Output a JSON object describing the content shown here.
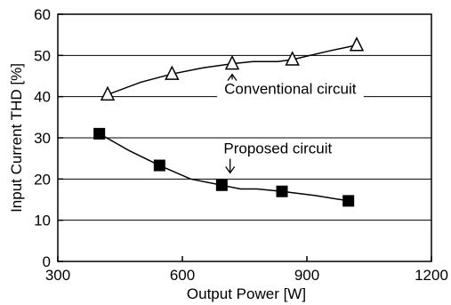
{
  "chart_data": {
    "type": "line",
    "xlabel": "Output Power [W]",
    "ylabel": "Input Current THD [%]",
    "xlim": [
      300,
      1200
    ],
    "ylim": [
      0,
      60
    ],
    "xticks": [
      "300",
      "600",
      "900",
      "1200"
    ],
    "yticks": [
      "0",
      "10",
      "20",
      "30",
      "40",
      "50",
      "60"
    ],
    "grid": "horizontal",
    "series": [
      {
        "name": "Conventional circuit",
        "marker": "open-triangle",
        "color": "#000000",
        "points": [
          [
            420,
            40.5
          ],
          [
            575,
            45.5
          ],
          [
            720,
            48.0
          ],
          [
            865,
            49.0
          ],
          [
            1020,
            52.5
          ]
        ],
        "curve": [
          [
            420,
            40.5
          ],
          [
            500,
            43.5
          ],
          [
            575,
            45.5
          ],
          [
            650,
            47.0
          ],
          [
            720,
            48.0
          ],
          [
            770,
            48.5
          ],
          [
            830,
            48.5
          ],
          [
            865,
            49.0
          ],
          [
            950,
            51.0
          ],
          [
            1020,
            52.5
          ]
        ]
      },
      {
        "name": "Proposed circuit",
        "marker": "filled-square",
        "color": "#000000",
        "points": [
          [
            400,
            31.0
          ],
          [
            545,
            23.3
          ],
          [
            695,
            18.5
          ],
          [
            840,
            17.0
          ],
          [
            1000,
            14.7
          ]
        ],
        "curve": [
          [
            400,
            31.0
          ],
          [
            470,
            27.0
          ],
          [
            545,
            23.3
          ],
          [
            620,
            20.0
          ],
          [
            695,
            18.5
          ],
          [
            740,
            17.6
          ],
          [
            780,
            17.6
          ],
          [
            840,
            17.0
          ],
          [
            920,
            16.0
          ],
          [
            1000,
            14.7
          ]
        ]
      }
    ],
    "annotations": [
      {
        "text": "Conventional circuit",
        "x": 860,
        "y": 42,
        "arrow_to": [
          720,
          48.0
        ]
      },
      {
        "text": "Proposed circuit",
        "x": 830,
        "y": 27.5,
        "arrow_to": [
          715,
          21.5
        ]
      }
    ]
  }
}
